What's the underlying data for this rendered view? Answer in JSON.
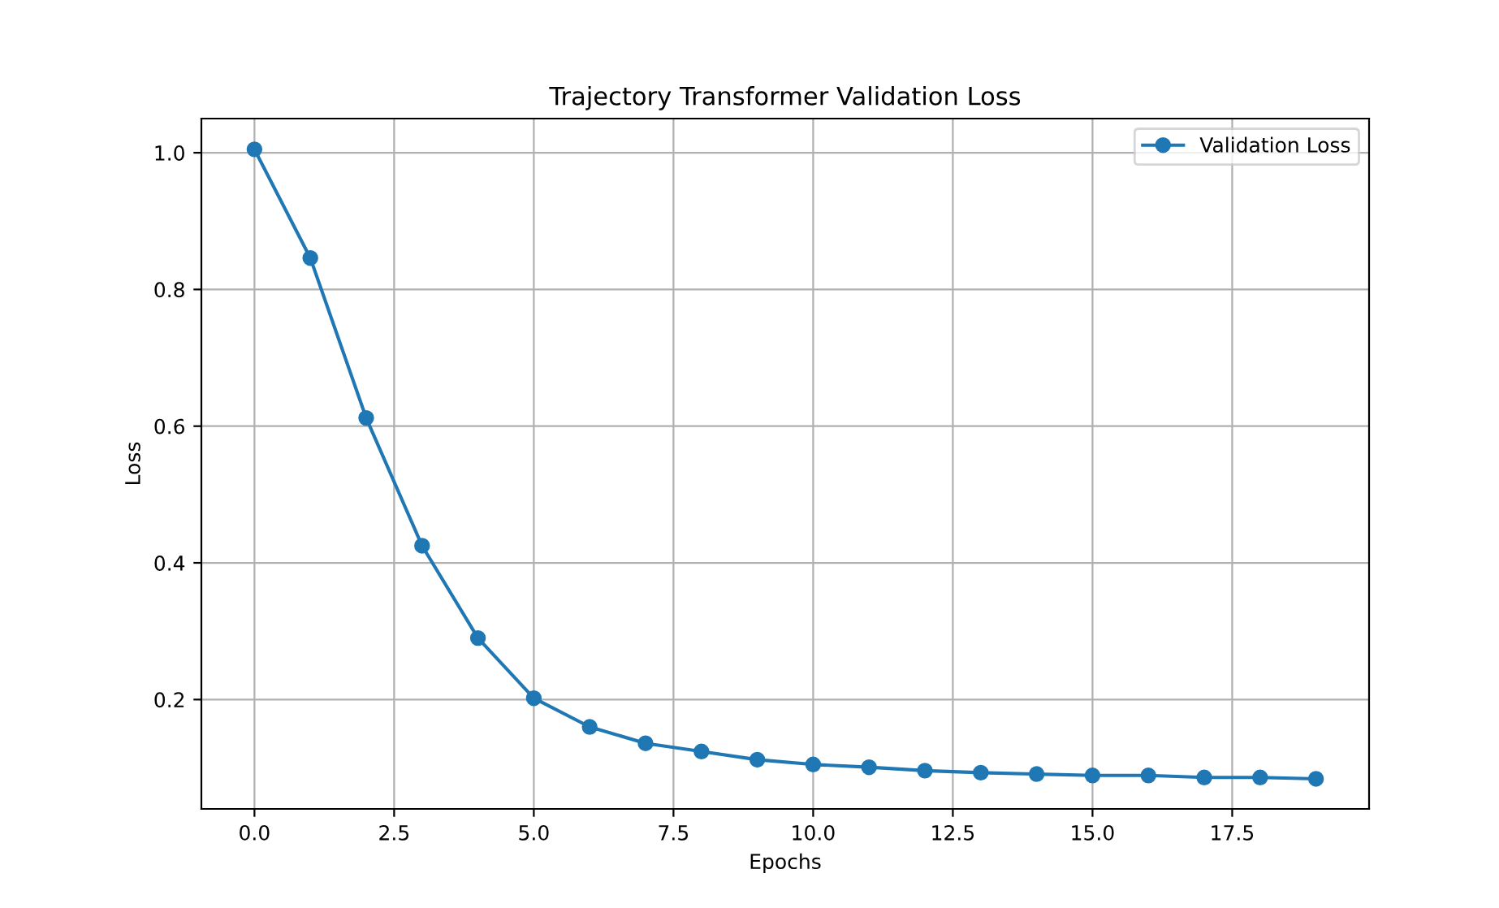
{
  "chart_data": {
    "type": "line",
    "title": "Trajectory Transformer Validation Loss",
    "xlabel": "Epochs",
    "ylabel": "Loss",
    "x": [
      0,
      1,
      2,
      3,
      4,
      5,
      6,
      7,
      8,
      9,
      10,
      11,
      12,
      13,
      14,
      15,
      16,
      17,
      18,
      19
    ],
    "series": [
      {
        "name": "Validation Loss",
        "color": "#1f77b4",
        "values": [
          1.005,
          0.846,
          0.612,
          0.425,
          0.29,
          0.202,
          0.16,
          0.136,
          0.124,
          0.112,
          0.105,
          0.101,
          0.096,
          0.093,
          0.091,
          0.089,
          0.089,
          0.086,
          0.086,
          0.084
        ]
      }
    ],
    "xlim": [
      -0.95,
      19.95
    ],
    "ylim": [
      0.04,
      1.05
    ],
    "xticks": [
      {
        "value": 0,
        "label": "0.0"
      },
      2.5,
      {
        "value": 5,
        "label": "5.0"
      },
      7.5,
      {
        "value": 10,
        "label": "10.0"
      },
      12.5,
      {
        "value": 15,
        "label": "15.0"
      },
      17.5
    ],
    "yticks": [
      0.2,
      0.4,
      0.6,
      0.8,
      {
        "value": 1,
        "label": "1.0"
      }
    ],
    "grid": true,
    "legend": "top right",
    "marker": "circle",
    "line_style": "solid"
  }
}
